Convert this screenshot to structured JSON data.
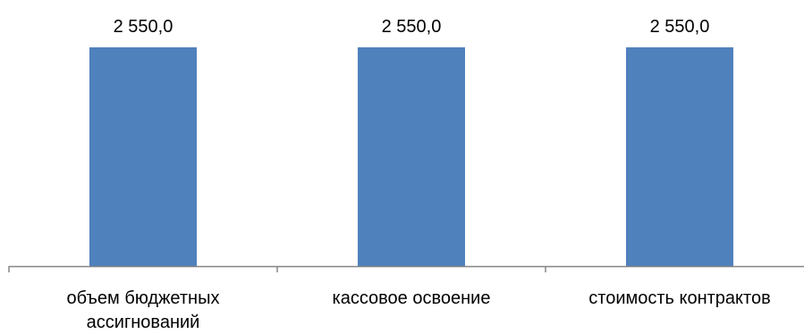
{
  "chart_data": {
    "type": "bar",
    "categories": [
      [
        "объем бюджетных",
        "ассигнований"
      ],
      [
        "кассовое освоение"
      ],
      [
        "стоимость контрактов"
      ]
    ],
    "values": [
      2550.0,
      2550.0,
      2550.0
    ],
    "value_labels": [
      "2 550,0",
      "2 550,0",
      "2 550,0"
    ],
    "title": "",
    "xlabel": "",
    "ylabel": "",
    "ylim": [
      0,
      2550.0
    ],
    "grid": false,
    "legend": "none",
    "bar_color": "#4f81bd",
    "axis_color": "#868686"
  }
}
